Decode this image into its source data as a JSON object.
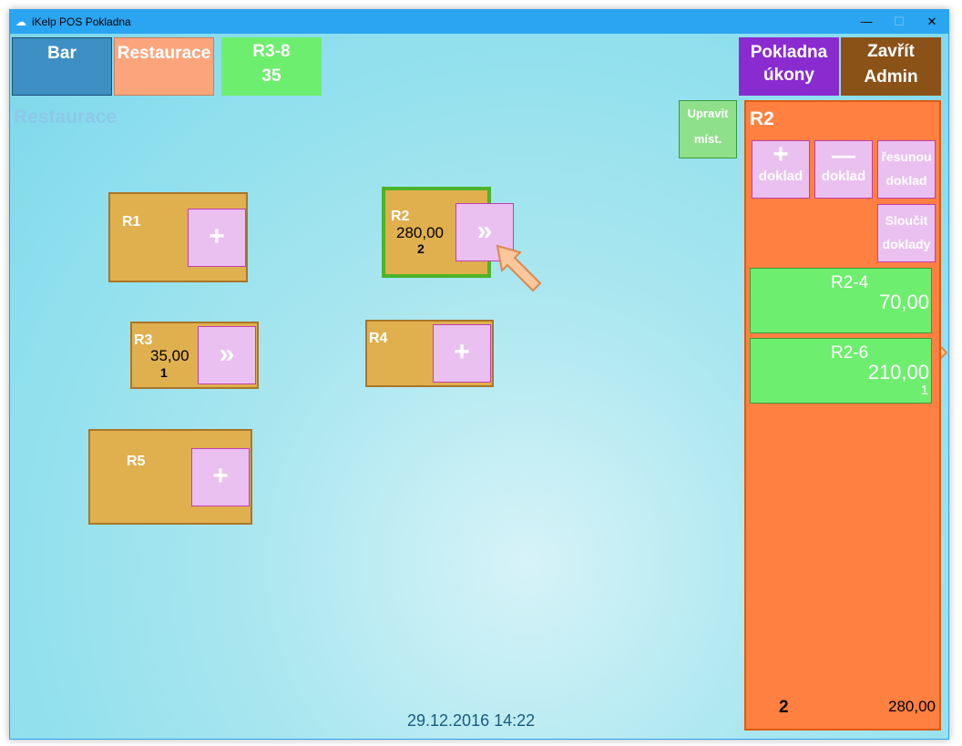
{
  "window": {
    "title": "iKelp POS Pokladna",
    "minimize": "—",
    "maximize": "☐",
    "close": "✕"
  },
  "top": {
    "bar": "Bar",
    "restaurace": "Restaurace",
    "r38_name": "R3-8",
    "r38_value": "35",
    "pokladna_l1": "Pokladna",
    "pokladna_l2": "úkony",
    "zavrit_l1": "Zavřít",
    "zavrit_l2": "Admin"
  },
  "colors": {
    "bar": "#3d8fc4",
    "restaurace": "#fca57c",
    "r38": "#6eee6e",
    "pokladna": "#8a2bd0",
    "zavrit": "#8b5218",
    "panel": "#ff8040",
    "table": "#e0b04e",
    "selected_border": "#4cb32a"
  },
  "area_title": "Restaurace",
  "upravit": {
    "l1": "Upravit",
    "l2": "míst."
  },
  "tables": [
    {
      "name": "R1",
      "action": "+"
    },
    {
      "name": "R2",
      "amount": "280,00",
      "count": "2",
      "action": "»"
    },
    {
      "name": "R3",
      "amount": "35,00",
      "count": "1",
      "action": "»"
    },
    {
      "name": "R4",
      "action": "+"
    },
    {
      "name": "R5",
      "action": "+"
    }
  ],
  "panel": {
    "title": "R2",
    "add_sym": "+",
    "add": "doklad",
    "remove_sym": "—",
    "remove": "doklad",
    "move_l1": "řesunou",
    "move_l2": "doklad",
    "merge_l1": "Sloučit",
    "merge_l2": "doklady",
    "docs": [
      {
        "name": "R2-4",
        "amount": "70,00"
      },
      {
        "name": "R2-6",
        "amount": "210,00",
        "count": "1"
      }
    ],
    "total_count": "2",
    "total_amount": "280,00"
  },
  "datetime": "29.12.2016 14:22"
}
